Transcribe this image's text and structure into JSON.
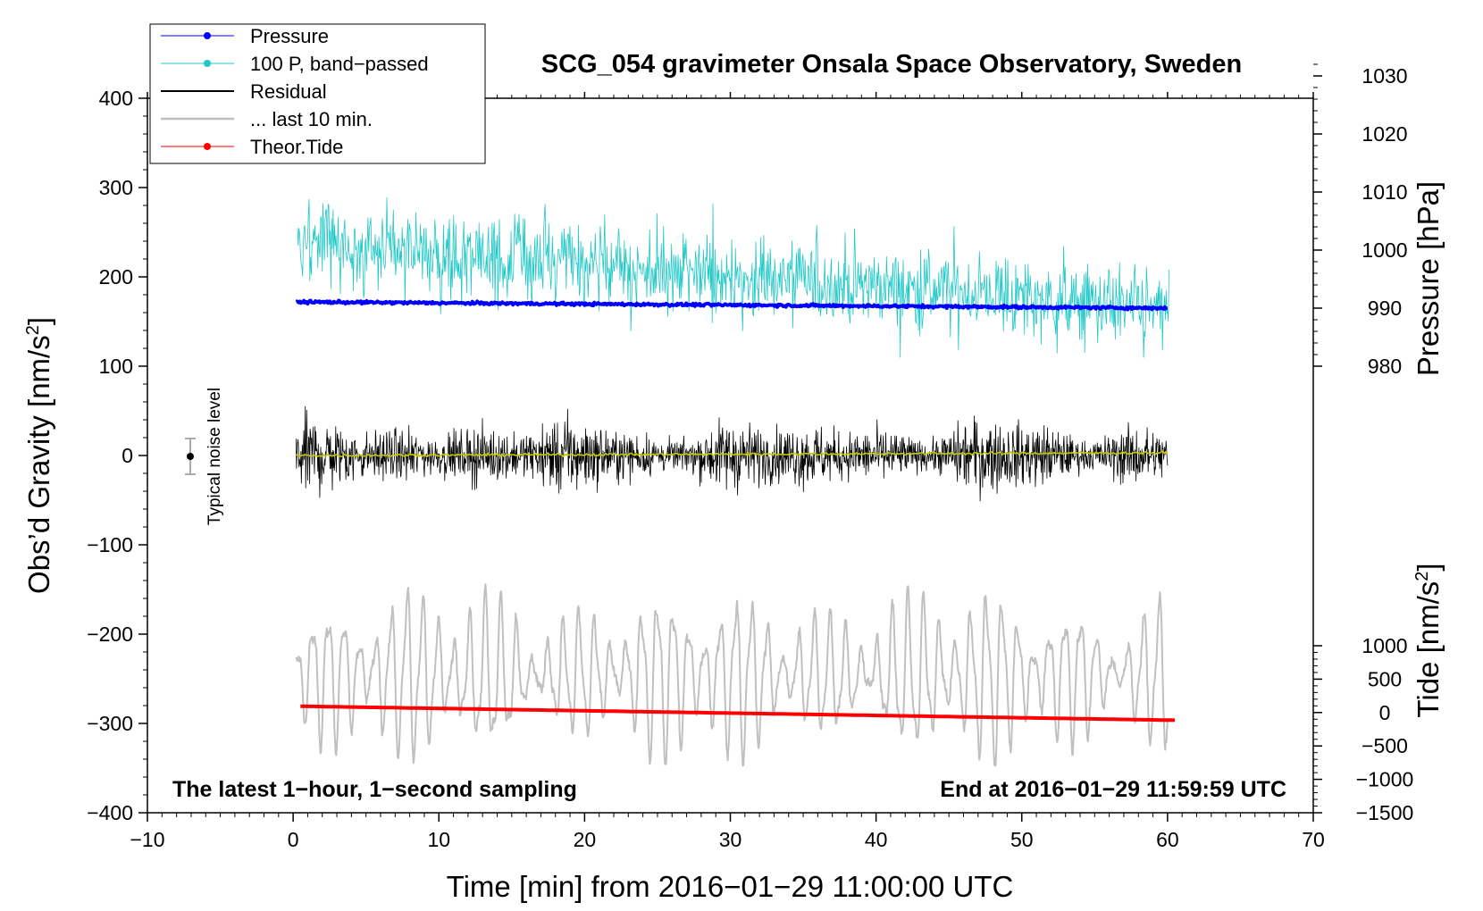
{
  "chart_data": {
    "type": "line",
    "title": "SCG_054 gravimeter Onsala Space Observatory, Sweden",
    "xlabel": "Time [min] from 2016−01−29 11:00:00 UTC",
    "ylabel_left_main": "Obs’d Gravity [nm/s",
    "ylabel_left_sup": "2",
    "ylabel_left_end": "]",
    "ylabel_right_pressure": "Pressure [hPa]",
    "ylabel_right_tide_main": "Tide [nm/s",
    "ylabel_right_tide_sup": "2",
    "ylabel_right_tide_end": "]",
    "xlim": [
      -10,
      70
    ],
    "xticks": [
      "−10",
      "0",
      "10",
      "20",
      "30",
      "40",
      "50",
      "60",
      "70"
    ],
    "xtick_values": [
      -10,
      0,
      10,
      20,
      30,
      40,
      50,
      60,
      70
    ],
    "ylim_left": [
      -400,
      400
    ],
    "yticks_left": [
      "−400",
      "−300",
      "−200",
      "−100",
      "0",
      "100",
      "200",
      "300",
      "400"
    ],
    "ytick_values_left": [
      -400,
      -300,
      -200,
      -100,
      0,
      100,
      200,
      300,
      400
    ],
    "pressure_axis": {
      "range": [
        980,
        1030
      ],
      "ticks": [
        "980",
        "990",
        "1000",
        "1010",
        "1020",
        "1030"
      ],
      "tick_values": [
        980,
        990,
        1000,
        1010,
        1020,
        1030
      ],
      "gravity_equiv_at_980": 100,
      "gravity_equiv_per_hPa": 6.5
    },
    "tide_axis": {
      "range": [
        -1500,
        1000
      ],
      "ticks": [
        "−1500",
        "−1000",
        "−500",
        "0",
        "500",
        "1000"
      ],
      "tick_values": [
        -1500,
        -1000,
        -500,
        0,
        500,
        1000
      ],
      "gravity_equiv_at_minus1500": -400,
      "gravity_equiv_per_unit": 0.0748
    },
    "legend": [
      {
        "label": "Pressure",
        "color": "#0000ff"
      },
      {
        "label": "100 P, band−passed",
        "color": "#20c8c8"
      },
      {
        "label": "Residual",
        "color": "#000000"
      },
      {
        "label": "... last 10 min.",
        "color": "#c0c0c0"
      },
      {
        "label": "Theor.Tide",
        "color": "#ff0000"
      }
    ],
    "series": [
      {
        "name": "Pressure",
        "units": "gravity-equiv nm/s2",
        "x": [
          0,
          60
        ],
        "values": [
          172,
          165
        ],
        "noise": 1.5
      },
      {
        "name": "100 P, band−passed",
        "units": "gravity-equiv nm/s2",
        "x": [
          0,
          15,
          30,
          45,
          60
        ],
        "values": [
          240,
          220,
          200,
          185,
          160
        ],
        "noise": 45
      },
      {
        "name": "Residual",
        "units": "nm/s2",
        "x": [
          0,
          60
        ],
        "values": [
          0,
          0
        ],
        "noise": 50
      },
      {
        "name": "Residual smoothed",
        "units": "nm/s2",
        "x": [
          0,
          60
        ],
        "values": [
          0,
          3
        ],
        "color": "#c8c800"
      },
      {
        "name": "... last 10 min.",
        "units": "nm/s2",
        "x": [
          0,
          60
        ],
        "values": [
          -245,
          -245
        ],
        "amplitude_max": 100
      },
      {
        "name": "Theor.Tide",
        "units": "nm/s2 (tide axis)",
        "x": [
          0.5,
          60.5
        ],
        "values": [
          95,
          -115
        ]
      }
    ],
    "noise_marker": {
      "x": -7,
      "value": 0,
      "err": 20,
      "label": "Typical noise level"
    },
    "note_left": "The latest 1−hour, 1−second sampling",
    "note_right": "End at 2016−01−29 11:59:59 UTC",
    "colors": {
      "pressure": "#0000ff",
      "bandpass": "#20c8c8",
      "residual": "#000000",
      "last10": "#c0c0c0",
      "tide": "#ff0000",
      "smooth": "#c8c800"
    }
  }
}
